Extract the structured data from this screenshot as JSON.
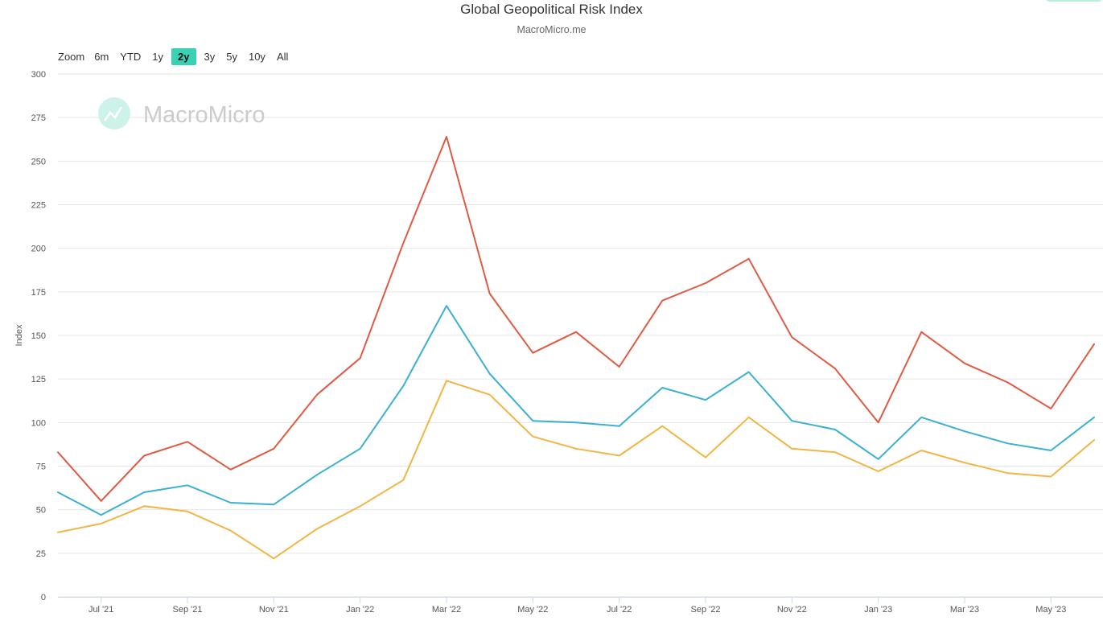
{
  "chart_title": "Global Geopolitical Risk Index",
  "chart_subtitle": "MacroMicro.me",
  "zoom": {
    "label": "Zoom",
    "options": [
      "6m",
      "YTD",
      "1y",
      "2y",
      "3y",
      "5y",
      "10y",
      "All"
    ],
    "selected": "2y",
    "accent_color": "#39d2b4"
  },
  "watermark": {
    "text": "MacroMicro",
    "icon": "chart-line-icon"
  },
  "chart_data": {
    "type": "line",
    "title": "Global Geopolitical Risk Index",
    "subtitle": "MacroMicro.me",
    "ylabel": "Index",
    "xlabel": "",
    "ylim": [
      0,
      300
    ],
    "yticks": [
      0,
      25,
      50,
      75,
      100,
      125,
      150,
      175,
      200,
      225,
      250,
      275,
      300
    ],
    "x": [
      "2021-06",
      "2021-07",
      "2021-08",
      "2021-09",
      "2021-10",
      "2021-11",
      "2021-12",
      "2022-01",
      "2022-02",
      "2022-03",
      "2022-04",
      "2022-05",
      "2022-06",
      "2022-07",
      "2022-08",
      "2022-09",
      "2022-10",
      "2022-11",
      "2022-12",
      "2023-01",
      "2023-02",
      "2023-03",
      "2023-04",
      "2023-05",
      "2023-06"
    ],
    "xtick_labels": [
      {
        "x": "2021-07",
        "label": "Jul '21"
      },
      {
        "x": "2021-09",
        "label": "Sep '21"
      },
      {
        "x": "2021-11",
        "label": "Nov '21"
      },
      {
        "x": "2022-01",
        "label": "Jan '22"
      },
      {
        "x": "2022-03",
        "label": "Mar '22"
      },
      {
        "x": "2022-05",
        "label": "May '22"
      },
      {
        "x": "2022-07",
        "label": "Jul '22"
      },
      {
        "x": "2022-09",
        "label": "Sep '22"
      },
      {
        "x": "2022-11",
        "label": "Nov '22"
      },
      {
        "x": "2023-01",
        "label": "Jan '23"
      },
      {
        "x": "2023-03",
        "label": "Mar '23"
      },
      {
        "x": "2023-05",
        "label": "May '23"
      }
    ],
    "grid": true,
    "series": [
      {
        "color": "#e05a43",
        "values": [
          83,
          55,
          81,
          89,
          73,
          85,
          116,
          137,
          203,
          264,
          174,
          140,
          152,
          132,
          170,
          180,
          194,
          149,
          131,
          100,
          152,
          134,
          123,
          108,
          145
        ]
      },
      {
        "color": "#3ab0d3",
        "values": [
          60,
          47,
          60,
          64,
          54,
          53,
          70,
          85,
          121,
          167,
          128,
          101,
          100,
          98,
          120,
          113,
          129,
          101,
          96,
          79,
          103,
          95,
          88,
          84,
          103
        ]
      },
      {
        "color": "#f2b544",
        "values": [
          37,
          42,
          52,
          49,
          38,
          22,
          39,
          52,
          67,
          124,
          116,
          92,
          85,
          81,
          98,
          80,
          103,
          85,
          83,
          72,
          84,
          77,
          71,
          69,
          90
        ]
      }
    ]
  }
}
